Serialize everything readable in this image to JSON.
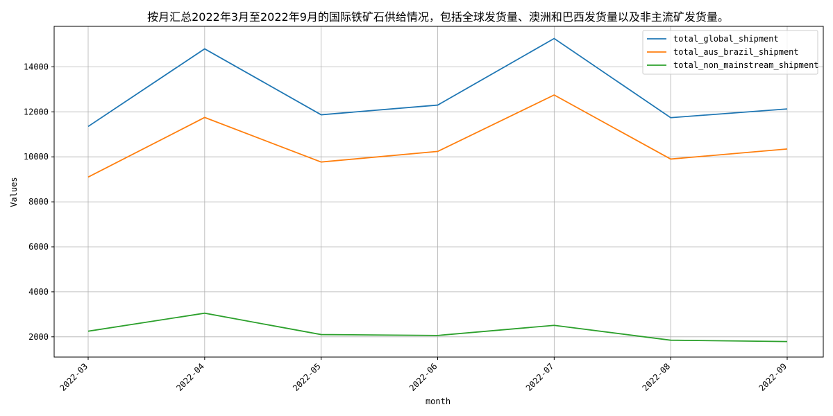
{
  "chart_data": {
    "type": "line",
    "title": "按月汇总2022年3月至2022年9月的国际铁矿石供给情况，包括全球发货量、澳洲和巴西发货量以及非主流矿发货量。",
    "xlabel": "month",
    "ylabel": "Values",
    "categories": [
      "2022-03",
      "2022-04",
      "2022-05",
      "2022-06",
      "2022-07",
      "2022-08",
      "2022-09"
    ],
    "y_ticks": [
      2000,
      4000,
      6000,
      8000,
      10000,
      12000,
      14000
    ],
    "ylim": [
      1100,
      15800
    ],
    "grid": true,
    "legend_position": "upper right",
    "series": [
      {
        "name": "total_global_shipment",
        "color": "#1f77b4",
        "values": [
          11350,
          14800,
          11870,
          12300,
          15260,
          11740,
          12130
        ]
      },
      {
        "name": "total_aus_brazil_shipment",
        "color": "#ff7f0e",
        "values": [
          9100,
          11750,
          9770,
          10240,
          12750,
          9900,
          10350
        ]
      },
      {
        "name": "total_non_mainstream_shipment",
        "color": "#2ca02c",
        "values": [
          2250,
          3050,
          2100,
          2060,
          2510,
          1850,
          1790
        ]
      }
    ]
  }
}
